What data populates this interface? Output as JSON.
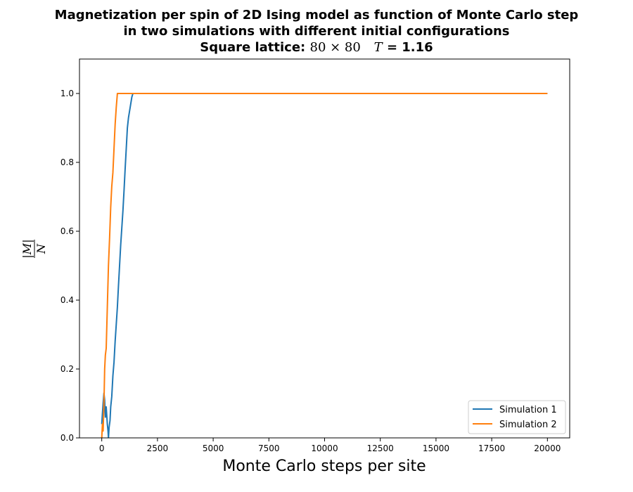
{
  "chart_data": {
    "type": "line",
    "title": {
      "line1": "Magnetization per spin of 2D Ising model as function of Monte Carlo step",
      "line2": "in two simulations with different initial configurations",
      "line3_prefix": "Square lattice: ",
      "lattice_math": "80 × 80",
      "temp_symbol": "T",
      "temp_value": " = 1.16"
    },
    "xlabel": "Monte Carlo steps per site",
    "ylabel": {
      "numerator": "|M|",
      "denominator": "N"
    },
    "xlim": [
      -1000,
      21000
    ],
    "ylim": [
      0,
      1.1
    ],
    "xticks": [
      0,
      2500,
      5000,
      7500,
      10000,
      12500,
      15000,
      17500,
      20000
    ],
    "yticks": [
      0.0,
      0.2,
      0.4,
      0.6,
      0.8,
      1.0
    ],
    "xtick_labels": [
      "0",
      "2500",
      "5000",
      "7500",
      "10000",
      "12500",
      "15000",
      "17500",
      "20000"
    ],
    "ytick_labels": [
      "0.0",
      "0.2",
      "0.4",
      "0.6",
      "0.8",
      "1.0"
    ],
    "grid": false,
    "legend_position": "lower-right",
    "series": [
      {
        "name": "Simulation 1",
        "color": "#1f77b4",
        "x": [
          0,
          30,
          60,
          100,
          130,
          160,
          200,
          250,
          280,
          300,
          330,
          370,
          400,
          450,
          500,
          550,
          600,
          650,
          700,
          750,
          800,
          850,
          900,
          950,
          1000,
          1050,
          1100,
          1150,
          1200,
          1250,
          1300,
          1350,
          1400,
          20000
        ],
        "y": [
          0.04,
          0.07,
          0.1,
          0.13,
          0.11,
          0.06,
          0.09,
          0.04,
          0.02,
          0.0,
          0.03,
          0.05,
          0.09,
          0.12,
          0.18,
          0.22,
          0.28,
          0.33,
          0.38,
          0.44,
          0.5,
          0.56,
          0.61,
          0.66,
          0.72,
          0.78,
          0.84,
          0.9,
          0.93,
          0.95,
          0.97,
          0.99,
          1.0,
          1.0
        ]
      },
      {
        "name": "Simulation 2",
        "color": "#ff7f0e",
        "x": [
          0,
          30,
          60,
          100,
          130,
          160,
          200,
          250,
          300,
          350,
          400,
          450,
          500,
          550,
          600,
          650,
          700,
          20000
        ],
        "y": [
          0.0,
          0.04,
          0.02,
          0.1,
          0.2,
          0.24,
          0.26,
          0.38,
          0.5,
          0.58,
          0.67,
          0.73,
          0.77,
          0.84,
          0.91,
          0.96,
          1.0,
          1.0
        ]
      }
    ]
  }
}
